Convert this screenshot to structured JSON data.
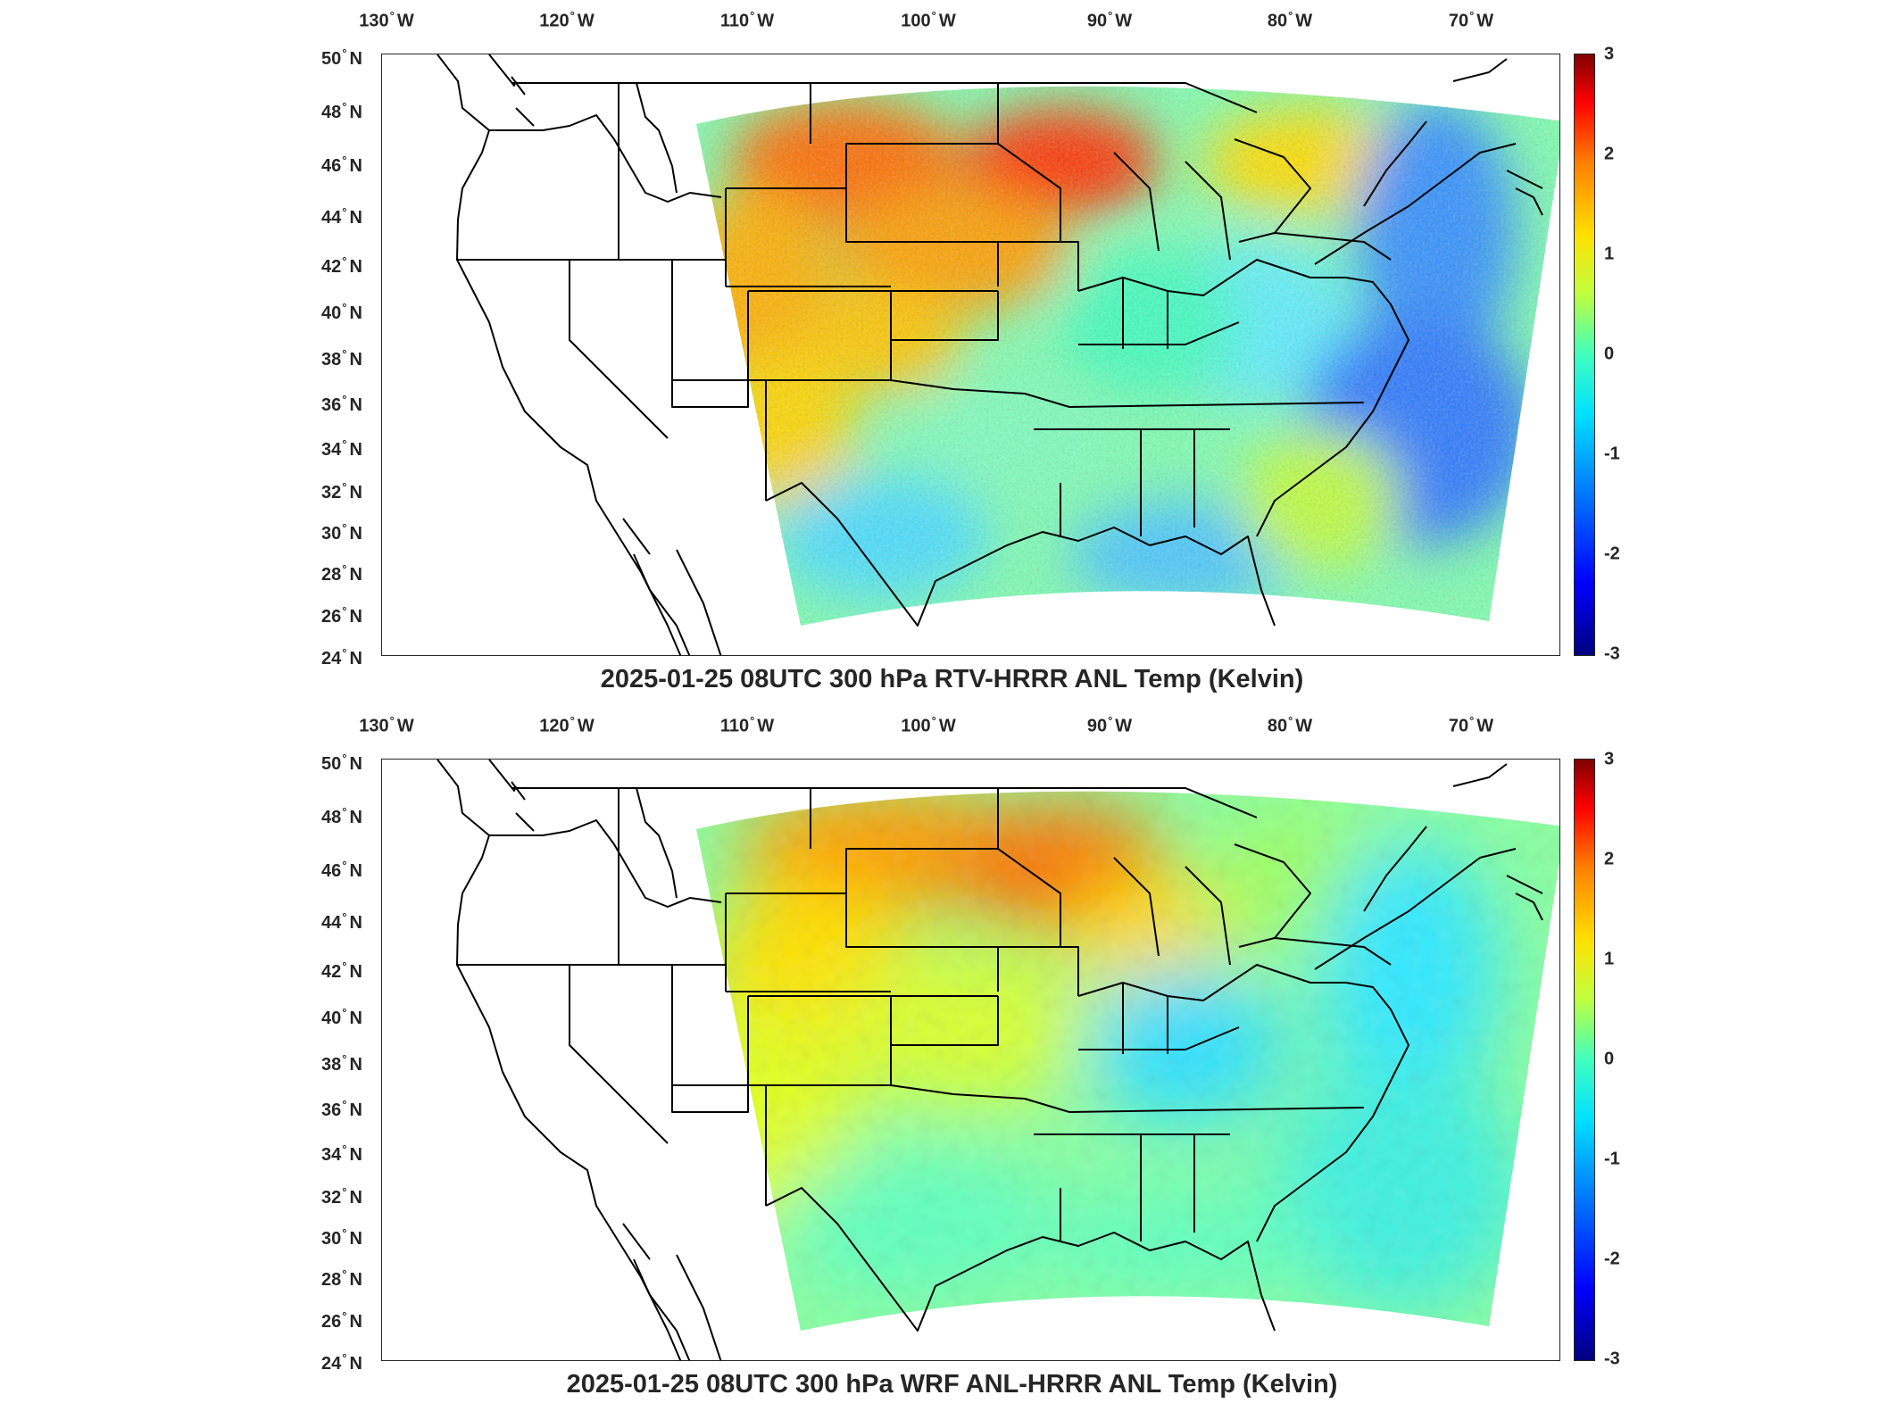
{
  "panels": [
    {
      "title": "2025-01-25 08UTC 300 hPa RTV-HRRR ANL Temp (Kelvin)",
      "field_style": "rtv"
    },
    {
      "title": "2025-01-25 08UTC 300 hPa WRF ANL-HRRR ANL Temp (Kelvin)",
      "field_style": "wrf"
    }
  ],
  "lon_labels": [
    "130",
    "120",
    "110",
    "100",
    "90",
    "80",
    "70"
  ],
  "lon_suffix": "W",
  "lat_labels": [
    "50",
    "48",
    "46",
    "44",
    "42",
    "40",
    "38",
    "36",
    "34",
    "32",
    "30",
    "28",
    "26",
    "24"
  ],
  "lat_suffix": "N",
  "degree_symbol": "°",
  "colorbar_ticks": [
    "3",
    "2",
    "1",
    "0",
    "-1",
    "-2",
    "-3"
  ],
  "colorbar_range": [
    -3,
    3
  ],
  "colors": {
    "coastline": "#000000",
    "frame": "#262626",
    "colormap": "jet"
  }
}
